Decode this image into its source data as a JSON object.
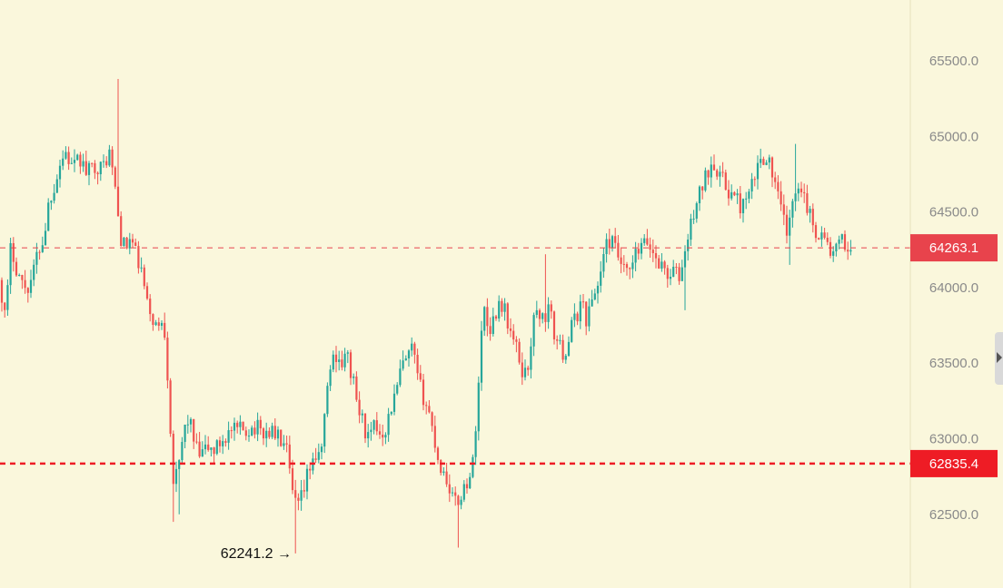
{
  "chart_data": {
    "type": "candlestick",
    "y_axis": {
      "position": "right",
      "ticks": [
        "65500.0",
        "65000.0",
        "64500.0",
        "64000.0",
        "63500.0",
        "63000.0",
        "62500.0"
      ],
      "tick_values": [
        65500,
        65000,
        64500,
        64000,
        63500,
        63000,
        62500
      ],
      "ylim": [
        62000,
        65880
      ]
    },
    "price_lines": [
      {
        "value": 64263.1,
        "label": "64263.1",
        "style": "dashed-thin",
        "color": "#e8434c"
      },
      {
        "value": 62835.4,
        "label": "62835.4",
        "style": "dashed-thick",
        "color": "#ee1c25"
      }
    ],
    "annotations": [
      {
        "text": "62241.2 →",
        "value": 62241.2
      }
    ],
    "colors": {
      "up": "#26a69a",
      "down": "#ef5350",
      "background": "#faf7dc",
      "tick_text": "#8a8a8a"
    },
    "anchors": [
      [
        0,
        64050
      ],
      [
        6,
        63780
      ],
      [
        12,
        64280
      ],
      [
        18,
        64140
      ],
      [
        24,
        64030
      ],
      [
        30,
        64000
      ],
      [
        36,
        64080
      ],
      [
        42,
        64250
      ],
      [
        48,
        64320
      ],
      [
        54,
        64580
      ],
      [
        60,
        64680
      ],
      [
        66,
        64820
      ],
      [
        72,
        64900
      ],
      [
        80,
        64780
      ],
      [
        88,
        64850
      ],
      [
        96,
        64750
      ],
      [
        104,
        64820
      ],
      [
        112,
        64780
      ],
      [
        120,
        64900
      ],
      [
        126,
        64700
      ],
      [
        132,
        64350
      ],
      [
        138,
        64250
      ],
      [
        144,
        64330
      ],
      [
        150,
        64200
      ],
      [
        156,
        64100
      ],
      [
        162,
        63880
      ],
      [
        168,
        63800
      ],
      [
        174,
        63720
      ],
      [
        180,
        63820
      ],
      [
        186,
        63300
      ],
      [
        190,
        62720
      ],
      [
        196,
        62760
      ],
      [
        202,
        63050
      ],
      [
        208,
        63150
      ],
      [
        214,
        62960
      ],
      [
        220,
        62880
      ],
      [
        228,
        62940
      ],
      [
        236,
        62920
      ],
      [
        244,
        62990
      ],
      [
        252,
        63040
      ],
      [
        260,
        63050
      ],
      [
        270,
        63060
      ],
      [
        280,
        63080
      ],
      [
        290,
        63040
      ],
      [
        300,
        63050
      ],
      [
        310,
        62980
      ],
      [
        316,
        62900
      ],
      [
        322,
        62620
      ],
      [
        328,
        62540
      ],
      [
        334,
        62640
      ],
      [
        340,
        62800
      ],
      [
        346,
        62900
      ],
      [
        352,
        62840
      ],
      [
        358,
        63200
      ],
      [
        364,
        63500
      ],
      [
        370,
        63560
      ],
      [
        376,
        63500
      ],
      [
        382,
        63550
      ],
      [
        388,
        63400
      ],
      [
        394,
        63200
      ],
      [
        400,
        63100
      ],
      [
        406,
        62980
      ],
      [
        412,
        63080
      ],
      [
        418,
        63050
      ],
      [
        424,
        63060
      ],
      [
        430,
        63200
      ],
      [
        436,
        63300
      ],
      [
        442,
        63480
      ],
      [
        448,
        63510
      ],
      [
        454,
        63600
      ],
      [
        460,
        63380
      ],
      [
        466,
        63280
      ],
      [
        472,
        63180
      ],
      [
        478,
        63000
      ],
      [
        484,
        62820
      ],
      [
        490,
        62760
      ],
      [
        496,
        62660
      ],
      [
        502,
        62550
      ],
      [
        508,
        62640
      ],
      [
        514,
        62720
      ],
      [
        520,
        62800
      ],
      [
        526,
        63300
      ],
      [
        532,
        63900
      ],
      [
        538,
        63720
      ],
      [
        544,
        63800
      ],
      [
        550,
        63920
      ],
      [
        556,
        63840
      ],
      [
        562,
        63700
      ],
      [
        568,
        63600
      ],
      [
        574,
        63460
      ],
      [
        580,
        63420
      ],
      [
        586,
        63740
      ],
      [
        592,
        63860
      ],
      [
        598,
        63780
      ],
      [
        604,
        63860
      ],
      [
        610,
        63700
      ],
      [
        616,
        63600
      ],
      [
        622,
        63560
      ],
      [
        628,
        63720
      ],
      [
        634,
        63800
      ],
      [
        640,
        63920
      ],
      [
        646,
        63780
      ],
      [
        652,
        63930
      ],
      [
        658,
        64020
      ],
      [
        664,
        64200
      ],
      [
        670,
        64320
      ],
      [
        676,
        64270
      ],
      [
        682,
        64180
      ],
      [
        688,
        64080
      ],
      [
        694,
        64100
      ],
      [
        700,
        64220
      ],
      [
        706,
        64260
      ],
      [
        712,
        64300
      ],
      [
        718,
        64240
      ],
      [
        724,
        64180
      ],
      [
        730,
        64130
      ],
      [
        736,
        64080
      ],
      [
        742,
        64110
      ],
      [
        748,
        64060
      ],
      [
        754,
        64240
      ],
      [
        760,
        64400
      ],
      [
        766,
        64560
      ],
      [
        772,
        64650
      ],
      [
        778,
        64750
      ],
      [
        784,
        64860
      ],
      [
        790,
        64780
      ],
      [
        796,
        64700
      ],
      [
        802,
        64640
      ],
      [
        808,
        64600
      ],
      [
        814,
        64550
      ],
      [
        820,
        64540
      ],
      [
        826,
        64630
      ],
      [
        832,
        64760
      ],
      [
        838,
        64860
      ],
      [
        844,
        64880
      ],
      [
        850,
        64750
      ],
      [
        856,
        64600
      ],
      [
        862,
        64460
      ],
      [
        868,
        64350
      ],
      [
        874,
        64630
      ],
      [
        880,
        64720
      ],
      [
        886,
        64600
      ],
      [
        892,
        64460
      ],
      [
        898,
        64380
      ],
      [
        904,
        64350
      ],
      [
        910,
        64300
      ],
      [
        916,
        64210
      ],
      [
        922,
        64260
      ],
      [
        928,
        64310
      ],
      [
        934,
        64250
      ]
    ]
  }
}
